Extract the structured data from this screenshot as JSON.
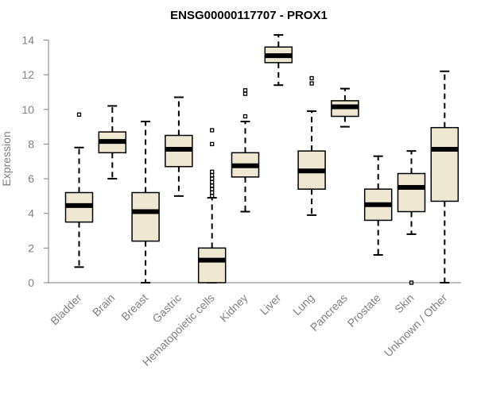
{
  "chart_data": {
    "type": "boxplot",
    "title": "ENSG00000117707 - PROX1",
    "ylabel": "Expression",
    "xlabel": "",
    "ylim": [
      0,
      14
    ],
    "yticks": [
      0,
      2,
      4,
      6,
      8,
      10,
      12,
      14
    ],
    "grid": false,
    "categories": [
      "Bladder",
      "Brain",
      "Breast",
      "Gastric",
      "Hematopoietic cells",
      "Kidney",
      "Liver",
      "Lung",
      "Pancreas",
      "Prostate",
      "Skin",
      "Unknown / Other"
    ],
    "boxes": [
      {
        "category": "Bladder",
        "whisker_low": 0.9,
        "q1": 3.5,
        "median": 4.45,
        "q3": 5.2,
        "whisker_high": 7.8,
        "outliers": [
          9.7
        ]
      },
      {
        "category": "Brain",
        "whisker_low": 6.0,
        "q1": 7.5,
        "median": 8.15,
        "q3": 8.7,
        "whisker_high": 10.2,
        "outliers": []
      },
      {
        "category": "Breast",
        "whisker_low": 0.0,
        "q1": 2.4,
        "median": 4.1,
        "q3": 5.2,
        "whisker_high": 9.3,
        "outliers": []
      },
      {
        "category": "Gastric",
        "whisker_low": 5.0,
        "q1": 6.7,
        "median": 7.7,
        "q3": 8.5,
        "whisker_high": 10.7,
        "outliers": []
      },
      {
        "category": "Hematopoietic cells",
        "whisker_low": 0.0,
        "q1": 0.0,
        "median": 1.3,
        "q3": 2.0,
        "whisker_high": 4.9,
        "outliers": [
          5.0,
          5.2,
          5.4,
          5.6,
          5.8,
          6.0,
          6.2,
          6.4,
          8.0,
          8.8
        ]
      },
      {
        "category": "Kidney",
        "whisker_low": 4.1,
        "q1": 6.1,
        "median": 6.75,
        "q3": 7.5,
        "whisker_high": 9.3,
        "outliers": [
          9.6,
          10.9,
          11.1
        ]
      },
      {
        "category": "Liver",
        "whisker_low": 11.4,
        "q1": 12.7,
        "median": 13.1,
        "q3": 13.6,
        "whisker_high": 14.3,
        "outliers": []
      },
      {
        "category": "Lung",
        "whisker_low": 3.9,
        "q1": 5.4,
        "median": 6.45,
        "q3": 7.6,
        "whisker_high": 9.9,
        "outliers": [
          11.5,
          11.8
        ]
      },
      {
        "category": "Pancreas",
        "whisker_low": 9.0,
        "q1": 9.6,
        "median": 10.15,
        "q3": 10.5,
        "whisker_high": 11.2,
        "outliers": []
      },
      {
        "category": "Prostate",
        "whisker_low": 1.6,
        "q1": 3.6,
        "median": 4.5,
        "q3": 5.4,
        "whisker_high": 7.3,
        "outliers": []
      },
      {
        "category": "Skin",
        "whisker_low": 2.8,
        "q1": 4.1,
        "median": 5.5,
        "q3": 6.3,
        "whisker_high": 7.6,
        "outliers": [
          0.0
        ]
      },
      {
        "category": "Unknown / Other",
        "whisker_low": 0.0,
        "q1": 4.7,
        "median": 7.7,
        "q3": 8.95,
        "whisker_high": 12.2,
        "outliers": []
      }
    ],
    "colors": {
      "box_fill": "#EEE8D2",
      "box_stroke": "#000000",
      "median": "#000000",
      "axis": "#808080",
      "tick_label": "#808080",
      "title": "#000000"
    }
  }
}
